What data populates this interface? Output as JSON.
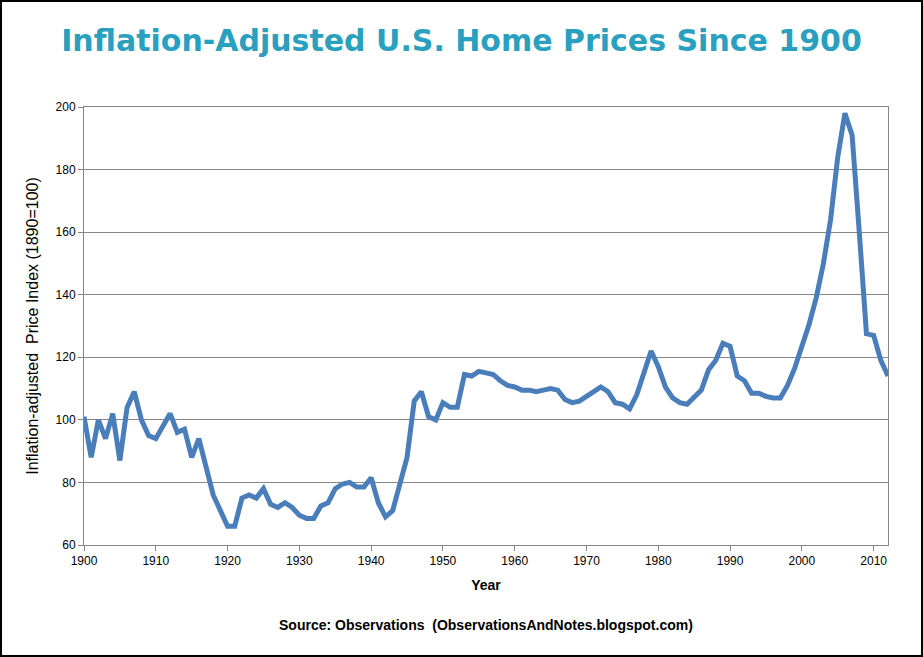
{
  "chart_data": {
    "type": "line",
    "title": "Inflation-Adjusted U.S. Home Prices Since 1900",
    "x_label": "Year",
    "y_label": "Inflation-adjusted  Price Index (1890=100)",
    "annotations": [
      "Source: Observations  (ObservationsAndNotes.blogspot.com)"
    ],
    "color": "#4a7ebb",
    "grid": true,
    "xlim": [
      1900,
      2012
    ],
    "xticks": [
      1900,
      1910,
      1920,
      1930,
      1940,
      1950,
      1960,
      1970,
      1980,
      1990,
      2000,
      2010
    ],
    "ylim": [
      60,
      200
    ],
    "yticks": [
      60,
      80,
      100,
      120,
      140,
      160,
      180,
      200
    ],
    "x": [
      1900,
      1901,
      1902,
      1903,
      1904,
      1905,
      1906,
      1907,
      1908,
      1909,
      1910,
      1911,
      1912,
      1913,
      1914,
      1915,
      1916,
      1917,
      1918,
      1919,
      1920,
      1921,
      1922,
      1923,
      1924,
      1925,
      1926,
      1927,
      1928,
      1929,
      1930,
      1931,
      1932,
      1933,
      1934,
      1935,
      1936,
      1937,
      1938,
      1939,
      1940,
      1941,
      1942,
      1943,
      1944,
      1945,
      1946,
      1947,
      1948,
      1949,
      1950,
      1951,
      1952,
      1953,
      1954,
      1955,
      1956,
      1957,
      1958,
      1959,
      1960,
      1961,
      1962,
      1963,
      1964,
      1965,
      1966,
      1967,
      1968,
      1969,
      1970,
      1971,
      1972,
      1973,
      1974,
      1975,
      1976,
      1977,
      1978,
      1979,
      1980,
      1981,
      1982,
      1983,
      1984,
      1985,
      1986,
      1987,
      1988,
      1989,
      1990,
      1991,
      1992,
      1993,
      1994,
      1995,
      1996,
      1997,
      1998,
      1999,
      2000,
      2001,
      2002,
      2003,
      2004,
      2005,
      2006,
      2007,
      2008,
      2009,
      2010,
      2011,
      2012
    ],
    "values": [
      101,
      88,
      100,
      94,
      102,
      87,
      104,
      109,
      100,
      95,
      94,
      98,
      102,
      96,
      97,
      88,
      94,
      85,
      76,
      71,
      66,
      66,
      75,
      76,
      75,
      78,
      73,
      72,
      73.5,
      72,
      69.5,
      68.5,
      68.5,
      72.5,
      73.5,
      78,
      79.5,
      80,
      78.5,
      78.5,
      81.5,
      73.5,
      69,
      71,
      80,
      88,
      106,
      109,
      101,
      100,
      105.5,
      104,
      104,
      114.5,
      114,
      115.5,
      115,
      114.5,
      112.5,
      111,
      110.5,
      109.5,
      109.5,
      109,
      109.5,
      110,
      109.5,
      106.5,
      105.5,
      106,
      107.5,
      109,
      110.5,
      109,
      105.5,
      105,
      103.5,
      108,
      115.5,
      122,
      117,
      110.5,
      107,
      105.5,
      105,
      107,
      109.5,
      116,
      119,
      124.5,
      123.5,
      114,
      112.5,
      108.5,
      108.5,
      107.5,
      107,
      107,
      111,
      116.5,
      123.5,
      130.5,
      139,
      150,
      164,
      184,
      198,
      191,
      160,
      127.5,
      127,
      119,
      114
    ]
  }
}
